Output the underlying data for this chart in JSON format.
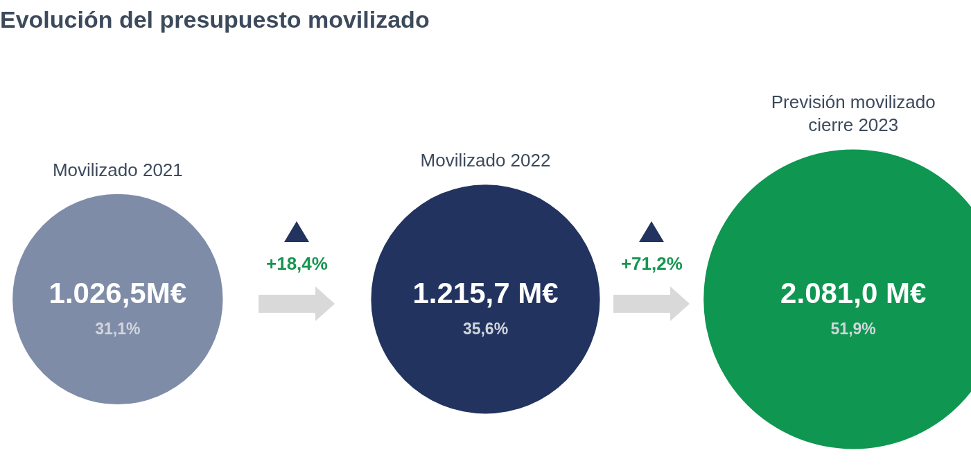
{
  "chart_data": {
    "type": "other",
    "title": "Evolución del presupuesto movilizado",
    "categories": [
      "Movilizado 2021",
      "Movilizado 2022",
      "Previsión movilizado cierre 2023"
    ],
    "series": [
      {
        "values": [
          1026.5,
          1215.7,
          2081.0
        ],
        "value_labels": [
          "1.026,5M€",
          "1.215,7 M€",
          "2.081,0 M€"
        ],
        "colors": [
          "#7f8ca8",
          "#22335f",
          "#0f9651"
        ]
      },
      {
        "values": [
          31.1,
          35.6,
          51.9
        ],
        "value_labels": [
          "31,1%",
          "35,6%",
          "51,9%"
        ],
        "color": "#d2d6dc"
      }
    ],
    "annotations": [
      "+18,4%",
      "+71,2%"
    ]
  }
}
